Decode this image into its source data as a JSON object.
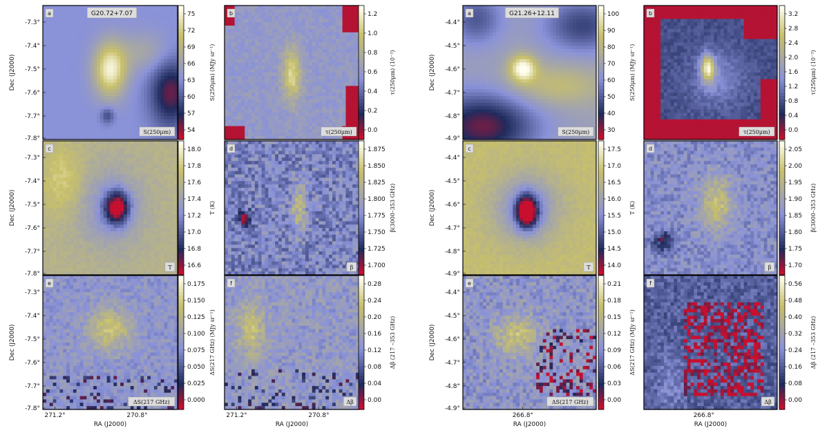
{
  "chart_data": [
    {
      "type": "heatmap",
      "title": "G20.72+7.07",
      "xlabel": "RA (J2000)",
      "ylabel": "Dec (J2000)",
      "xticks": [
        "271.2°",
        "270.8°"
      ],
      "yticks": [
        "-7.3°",
        "-7.4°",
        "-7.5°",
        "-7.6°",
        "-7.7°",
        "-7.8°"
      ],
      "panels": [
        {
          "letter": "a",
          "label": "S(250μm)",
          "cbar_label": "S(250μm) (MJy sr⁻¹)",
          "cbar_ticks": [
            "75",
            "72",
            "69",
            "66",
            "63",
            "60",
            "57",
            "54"
          ],
          "field": "peak"
        },
        {
          "letter": "b",
          "label": "τ(250μm)",
          "cbar_label": "τ(250μm) (10⁻³)",
          "cbar_ticks": [
            "1.2",
            "1.0",
            "0.8",
            "0.6",
            "0.4",
            "0.2",
            "0.0"
          ],
          "field": "tau"
        },
        {
          "letter": "c",
          "label": "T",
          "cbar_label": "T (K)",
          "cbar_ticks": [
            "18.0",
            "17.8",
            "17.6",
            "17.4",
            "17.2",
            "17.0",
            "16.8",
            "16.6"
          ],
          "field": "temp"
        },
        {
          "letter": "d",
          "label": "β",
          "cbar_label": "β(3000–353 GHz)",
          "cbar_ticks": [
            "1.875",
            "1.850",
            "1.825",
            "1.800",
            "1.775",
            "1.750",
            "1.725",
            "1.700"
          ],
          "field": "beta"
        },
        {
          "letter": "e",
          "label": "ΔS(217 GHz)",
          "cbar_label": "ΔS(217 GHz) (MJy sr⁻¹)",
          "cbar_ticks": [
            "0.175",
            "0.150",
            "0.125",
            "0.100",
            "0.075",
            "0.050",
            "0.025",
            "0.000"
          ],
          "field": "ds"
        },
        {
          "letter": "f",
          "label": "Δβ",
          "cbar_label": "Δβ (217 –353 GHz)",
          "cbar_ticks": [
            "0.28",
            "0.24",
            "0.20",
            "0.16",
            "0.12",
            "0.08",
            "0.04",
            "0.00"
          ],
          "field": "db"
        }
      ]
    },
    {
      "type": "heatmap",
      "title": "G21.26+12.11",
      "xlabel": "RA (J2000)",
      "ylabel": "Dec (J2000)",
      "xticks": [
        "266.8°"
      ],
      "yticks": [
        "-4.4°",
        "-4.5°",
        "-4.6°",
        "-4.7°",
        "-4.8°",
        "-4.9°"
      ],
      "panels": [
        {
          "letter": "a",
          "label": "S(250μm)",
          "cbar_label": "S(250μm) (MJy sr⁻¹)",
          "cbar_ticks": [
            "100",
            "90",
            "80",
            "70",
            "60",
            "50",
            "40",
            "30"
          ],
          "field": "peak2"
        },
        {
          "letter": "b",
          "label": "τ(250μm)",
          "cbar_label": "τ(250μm) (10⁻³)",
          "cbar_ticks": [
            "3.2",
            "2.8",
            "2.4",
            "2.0",
            "1.6",
            "1.2",
            "0.8",
            "0.4",
            "0.0"
          ],
          "field": "tau2"
        },
        {
          "letter": "c",
          "label": "T",
          "cbar_label": "T (K)",
          "cbar_ticks": [
            "17.5",
            "17.0",
            "16.5",
            "16.0",
            "15.5",
            "15.0",
            "14.5",
            "14.0"
          ],
          "field": "temp2"
        },
        {
          "letter": "d",
          "label": "β",
          "cbar_label": "β(3000–353 GHz)",
          "cbar_ticks": [
            "2.05",
            "2.00",
            "1.95",
            "1.90",
            "1.85",
            "1.80",
            "1.75",
            "1.70"
          ],
          "field": "beta2"
        },
        {
          "letter": "e",
          "label": "ΔS(217 GHz)",
          "cbar_label": "ΔS(217 GHz) (MJy sr⁻¹)",
          "cbar_ticks": [
            "0.21",
            "0.18",
            "0.15",
            "0.12",
            "0.09",
            "0.06",
            "0.03",
            "0.00"
          ],
          "field": "ds2"
        },
        {
          "letter": "f",
          "label": "Δβ",
          "cbar_label": "Δβ (217 –353 GHz)",
          "cbar_ticks": [
            "0.56",
            "0.48",
            "0.40",
            "0.32",
            "0.24",
            "0.16",
            "0.08",
            "0.00"
          ],
          "field": "db2"
        }
      ]
    }
  ],
  "colors": {
    "low": "#c8102e",
    "dark": "#1f2a5c",
    "mid": "#8a92d8",
    "high_mid": "#c8c06a",
    "high": "#fffff0"
  }
}
